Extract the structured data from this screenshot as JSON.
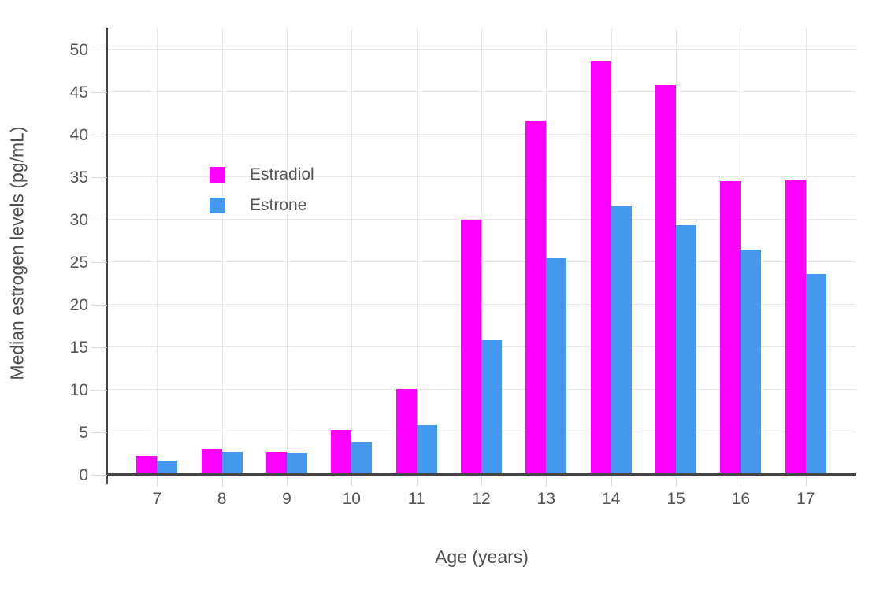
{
  "chart_data": {
    "type": "bar",
    "title": "",
    "xlabel": "Age (years)",
    "ylabel": "Median estrogen levels (pg/mL)",
    "categories": [
      7,
      8,
      9,
      10,
      11,
      12,
      13,
      14,
      15,
      16,
      17
    ],
    "series": [
      {
        "name": "Estradiol",
        "color": "#FF00FF",
        "values": [
          2.2,
          3.1,
          2.7,
          5.3,
          10.1,
          30.0,
          41.6,
          48.6,
          45.8,
          34.5,
          34.6
        ]
      },
      {
        "name": "Estrone",
        "color": "#4499EE",
        "values": [
          1.7,
          2.7,
          2.6,
          3.9,
          5.8,
          15.8,
          25.5,
          31.6,
          29.4,
          26.5,
          23.6
        ]
      }
    ],
    "y_ticks": [
      0,
      5,
      10,
      15,
      20,
      25,
      30,
      35,
      40,
      45,
      50
    ],
    "ylim": [
      0,
      52.6
    ],
    "grid": true,
    "legend_position": "inside-top-left",
    "colors": {
      "background": "#ffffff",
      "grid": "#e8e8e8",
      "axis_line": "#444444",
      "tick_mark": "#dcdcdc",
      "tick_label": "#555555",
      "axis_title": "#4d4d4d"
    }
  }
}
